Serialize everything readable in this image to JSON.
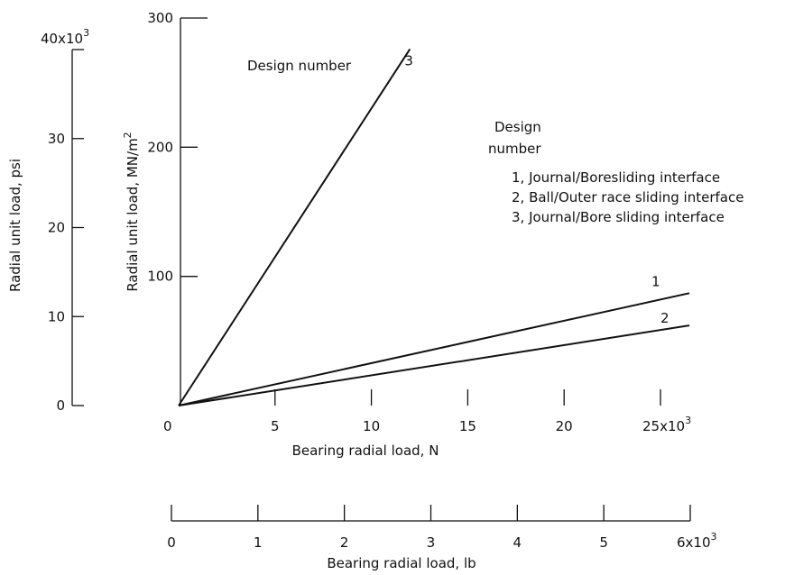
{
  "chart_data": {
    "type": "line",
    "x": [
      0,
      25
    ],
    "x_unit_label": "25x10",
    "x_unit_exp": "3",
    "xlabel": "Bearing radial load, N",
    "xticks": [
      "0",
      "5",
      "10",
      "15",
      "20"
    ],
    "xlim": [
      0,
      25
    ],
    "ylabel": "Radial unit load, MN/m",
    "ylabel_sup": "2",
    "yticks": [
      "100",
      "200",
      "300"
    ],
    "ylim": [
      0,
      300
    ],
    "series": [
      {
        "name": "1",
        "x": [
          0,
          26.5
        ],
        "values": [
          0,
          87
        ]
      },
      {
        "name": "2",
        "x": [
          0,
          26.5
        ],
        "values": [
          0,
          62
        ]
      },
      {
        "name": "3",
        "x": [
          0,
          12
        ],
        "values": [
          0,
          276
        ]
      }
    ],
    "legend": {
      "title_line1": "Design",
      "title_line2": "number",
      "entries": [
        "1, Journal/Boresliding interface",
        "2, Ball/Outer race sliding interface",
        "3, Journal/Bore sliding interface"
      ],
      "placement": "top-right"
    },
    "annotation": "Design number",
    "secondary_x": {
      "label": "Bearing radial load, lb",
      "ticks": [
        "0",
        "1",
        "2",
        "3",
        "4",
        "5"
      ],
      "unit_label": "6x10",
      "unit_exp": "3",
      "lim": [
        0,
        6
      ]
    },
    "secondary_y": {
      "label": "Radial unit load, psi",
      "ticks": [
        "0",
        "10",
        "20",
        "30"
      ],
      "unit_label": "40x10",
      "unit_exp": "3",
      "lim": [
        0,
        40
      ]
    }
  }
}
